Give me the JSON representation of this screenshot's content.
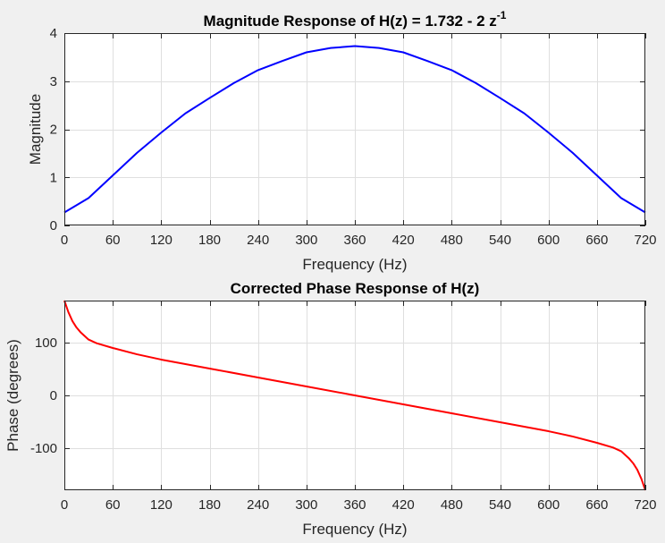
{
  "colors": {
    "figure_bg": "#f0f0f0",
    "axes_bg": "#ffffff",
    "grid": "#dfdfdf",
    "axis": "#262626",
    "magnitude_line": "#0000ff",
    "phase_line": "#ff0000"
  },
  "chart_data": [
    {
      "type": "line",
      "title": "Magnitude Response of H(z) = 1.732 - 2 z",
      "title_superscript": "-1",
      "xlabel": "Frequency (Hz)",
      "ylabel": "Magnitude",
      "xlim": [
        0,
        720
      ],
      "ylim": [
        0,
        4
      ],
      "xticks": [
        0,
        60,
        120,
        180,
        240,
        300,
        360,
        420,
        480,
        540,
        600,
        660,
        720
      ],
      "yticks": [
        0,
        1,
        2,
        3,
        4
      ],
      "grid": true,
      "series": [
        {
          "color": "#0000ff",
          "x": [
            0,
            30,
            60,
            90,
            120,
            150,
            180,
            210,
            240,
            270,
            300,
            330,
            360,
            390,
            420,
            450,
            480,
            510,
            540,
            570,
            600,
            630,
            660,
            690,
            720
          ],
          "y": [
            0.27,
            0.57,
            1.04,
            1.51,
            1.93,
            2.33,
            2.65,
            2.96,
            3.23,
            3.42,
            3.6,
            3.69,
            3.73,
            3.69,
            3.6,
            3.42,
            3.23,
            2.96,
            2.65,
            2.33,
            1.93,
            1.51,
            1.04,
            0.57,
            0.27
          ]
        }
      ]
    },
    {
      "type": "line",
      "title": "Corrected Phase Response of H(z)",
      "xlabel": "Frequency (Hz)",
      "ylabel": "Phase (degrees)",
      "xlim": [
        0,
        720
      ],
      "ylim": [
        -180,
        180
      ],
      "xticks": [
        0,
        60,
        120,
        180,
        240,
        300,
        360,
        420,
        480,
        540,
        600,
        660,
        720
      ],
      "yticks": [
        -100,
        0,
        100
      ],
      "grid": true,
      "series": [
        {
          "color": "#ff0000",
          "x": [
            0,
            5,
            10,
            15,
            20,
            30,
            40,
            60,
            90,
            120,
            180,
            240,
            300,
            360,
            420,
            480,
            540,
            600,
            630,
            660,
            680,
            690,
            700,
            705,
            710,
            715,
            720
          ],
          "y": [
            180,
            158,
            141,
            129,
            120,
            106,
            99,
            90,
            78,
            68,
            51,
            34,
            17,
            0,
            -17,
            -34,
            -51,
            -68,
            -78,
            -90,
            -99,
            -106,
            -120,
            -129,
            -141,
            -158,
            -180
          ]
        }
      ]
    }
  ]
}
